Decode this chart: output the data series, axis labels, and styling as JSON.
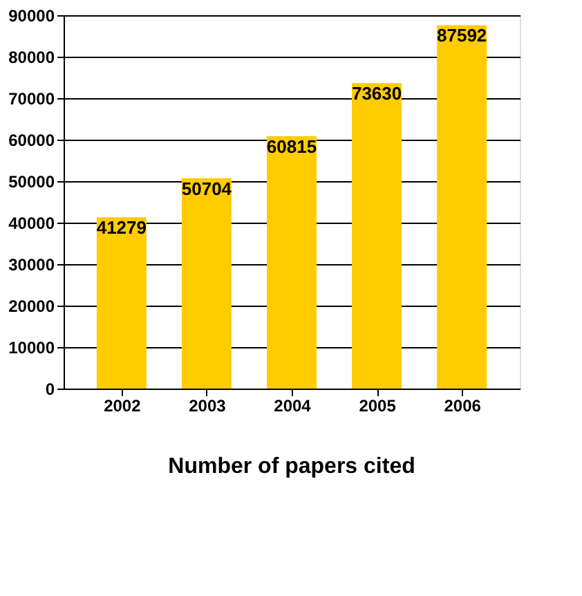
{
  "chart_data": {
    "type": "bar",
    "title": "Number of papers cited",
    "categories": [
      "2002",
      "2003",
      "2004",
      "2005",
      "2006"
    ],
    "values": [
      41279,
      50704,
      60815,
      73630,
      87592
    ],
    "color": "#ffcc00",
    "ylim": [
      0,
      90000
    ],
    "yticks": [
      0,
      10000,
      20000,
      30000,
      40000,
      50000,
      60000,
      70000,
      80000,
      90000
    ],
    "grid": "y",
    "data_labels": true
  }
}
